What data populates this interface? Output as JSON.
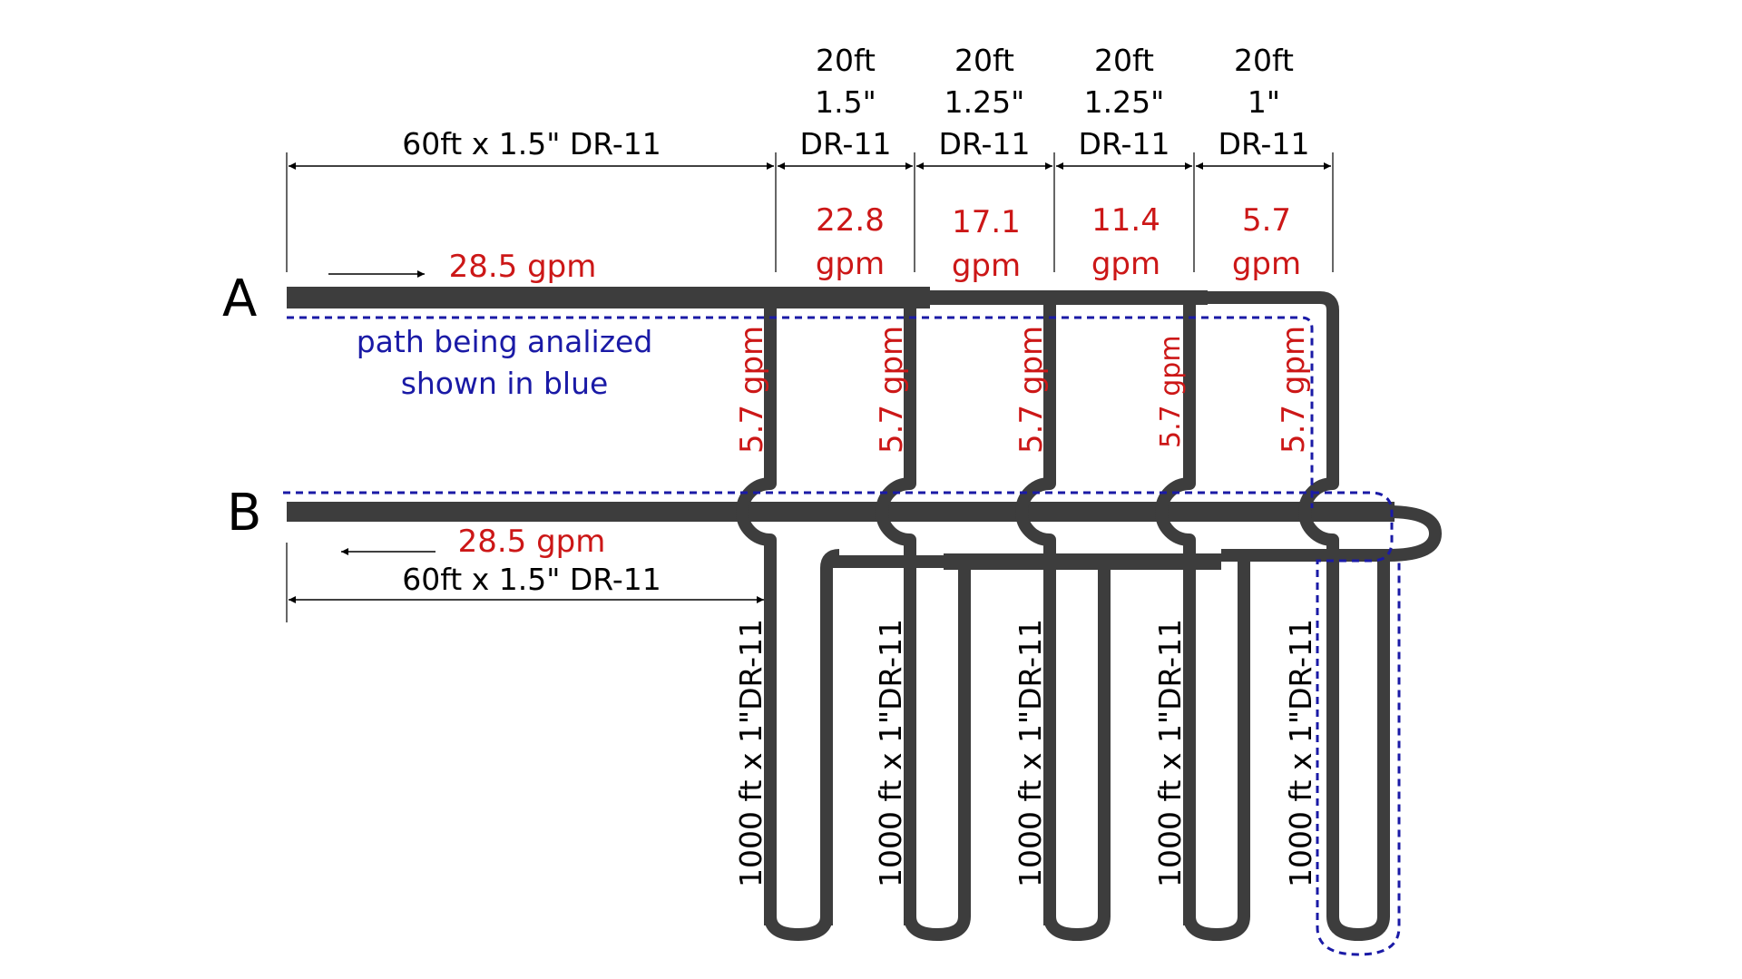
{
  "node_labels": {
    "a": "A",
    "b": "B"
  },
  "supply": {
    "label": "60ft x 1.5\" DR-11",
    "flow": "28.5 gpm"
  },
  "return_line": {
    "label": "60ft x 1.5\" DR-11",
    "flow": "28.5 gpm"
  },
  "segments": [
    {
      "length": "20ft",
      "size": "1.5\"",
      "dr": "DR-11",
      "flow_value": "22.8",
      "flow_unit": "gpm"
    },
    {
      "length": "20ft",
      "size": "1.25\"",
      "dr": "DR-11",
      "flow_value": "17.1",
      "flow_unit": "gpm"
    },
    {
      "length": "20ft",
      "size": "1.25\"",
      "dr": "DR-11",
      "flow_value": "11.4",
      "flow_unit": "gpm"
    },
    {
      "length": "20ft",
      "size": "1\"",
      "dr": "DR-11",
      "flow_value": "5.7",
      "flow_unit": "gpm"
    }
  ],
  "branches": [
    {
      "flow": "5.7 gpm",
      "loop_label": "1000 ft x 1\"DR-11"
    },
    {
      "flow": "5.7 gpm",
      "loop_label": "1000 ft x 1\"DR-11"
    },
    {
      "flow": "5.7 gpm",
      "loop_label": "1000 ft x 1\"DR-11"
    },
    {
      "flow": "5.7 gpm",
      "loop_label": "1000 ft x 1\"DR-11"
    },
    {
      "flow": "5.7 gpm",
      "loop_label": "1000 ft x 1\"DR-11"
    }
  ],
  "annotation": {
    "line1": "path being analized",
    "line2": "shown in blue"
  },
  "colors": {
    "pipe": "#3d3d3d",
    "flow_text": "#cc1717",
    "path": "#1a1aa6"
  }
}
